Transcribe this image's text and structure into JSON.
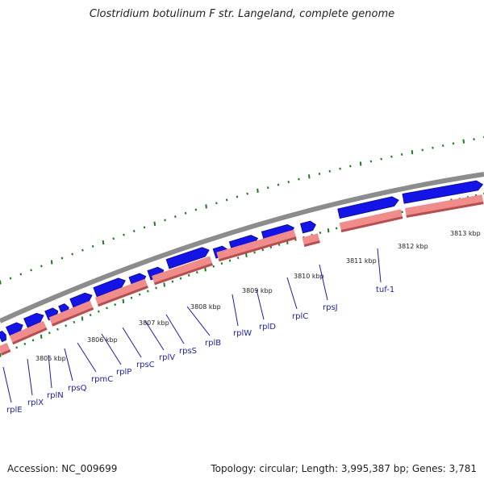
{
  "title": "Clostridium botulinum F str. Langeland, complete genome",
  "footer": {
    "accession": "Accession: NC_009699",
    "summary": "Topology: circular; Length: 3,995,387 bp; Genes: 3,781"
  },
  "colors": {
    "backbone": "#8c8c8c",
    "gene_forward": "#1414e6",
    "gene_forward_edge": "#0a0a8c",
    "rna_track": "#f08c8c",
    "rna_track_edge": "#b45050",
    "gc_marks": "#1e7a1e",
    "gene_label": "#1c1ca8"
  },
  "kbp_ticks": [
    {
      "label": "3805 kbp"
    },
    {
      "label": "3806 kbp"
    },
    {
      "label": "3807 kbp"
    },
    {
      "label": "3808 kbp"
    },
    {
      "label": "3809 kbp"
    },
    {
      "label": "3810 kbp"
    },
    {
      "label": "3811 kbp"
    },
    {
      "label": "3812 kbp"
    },
    {
      "label": "3813 kbp"
    }
  ],
  "genes": [
    {
      "name": "rplE"
    },
    {
      "name": "rplX"
    },
    {
      "name": "rplN"
    },
    {
      "name": "rpsQ"
    },
    {
      "name": "rpmC"
    },
    {
      "name": "rplP"
    },
    {
      "name": "rpsC"
    },
    {
      "name": "rplV"
    },
    {
      "name": "rpsS"
    },
    {
      "name": "rplB"
    },
    {
      "name": "rplW"
    },
    {
      "name": "rplD"
    },
    {
      "name": "rplC"
    },
    {
      "name": "rpsJ"
    },
    {
      "name": "tuf-1"
    }
  ]
}
